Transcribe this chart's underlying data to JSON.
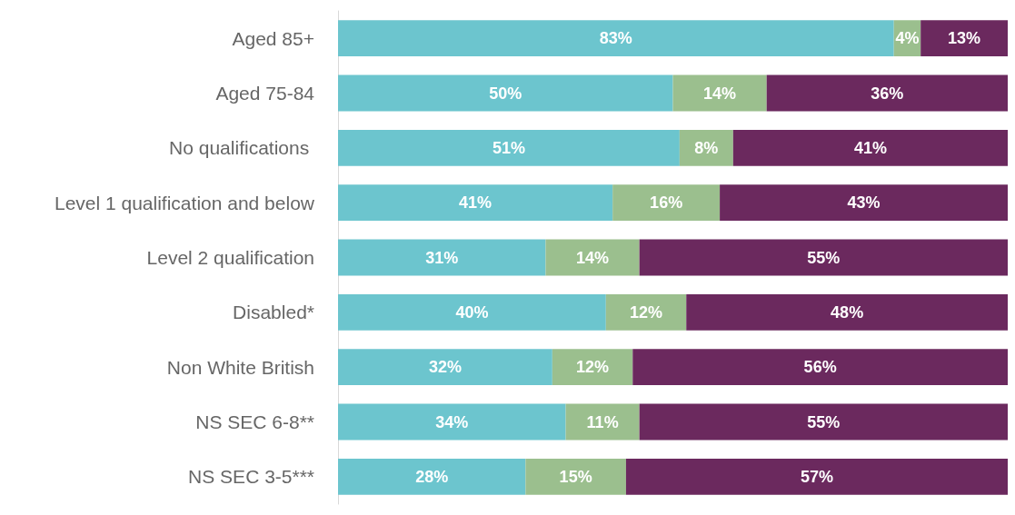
{
  "chart_data": {
    "type": "bar",
    "orientation": "horizontal",
    "stacked": true,
    "categories": [
      "Aged 85+",
      "Aged 75-84",
      "No qualifications ",
      "Level 1 qualification and below",
      "Level 2 qualification",
      "Disabled*",
      "Non White British",
      "NS SEC 6-8**",
      "NS SEC 3-5***"
    ],
    "series": [
      {
        "color": "#6cc5ce",
        "values": [
          83,
          50,
          51,
          41,
          31,
          40,
          32,
          34,
          28
        ],
        "value_labels": [
          "83%",
          "50%",
          "51%",
          "41%",
          "31%",
          "40%",
          "32%",
          "34%",
          "28%"
        ]
      },
      {
        "color": "#9bbf8e",
        "values": [
          4,
          14,
          8,
          16,
          14,
          12,
          12,
          11,
          15
        ],
        "value_labels": [
          "4%",
          "14%",
          "8%",
          "16%",
          "14%",
          "12%",
          "12%",
          "11%",
          "15%"
        ]
      },
      {
        "color": "#6b295e",
        "values": [
          13,
          36,
          41,
          43,
          55,
          48,
          56,
          55,
          57
        ],
        "value_labels": [
          "13%",
          "36%",
          "41%",
          "43%",
          "55%",
          "48%",
          "56%",
          "55%",
          "57%"
        ]
      }
    ],
    "xlim": [
      0,
      100
    ],
    "tick_labels": "y"
  }
}
